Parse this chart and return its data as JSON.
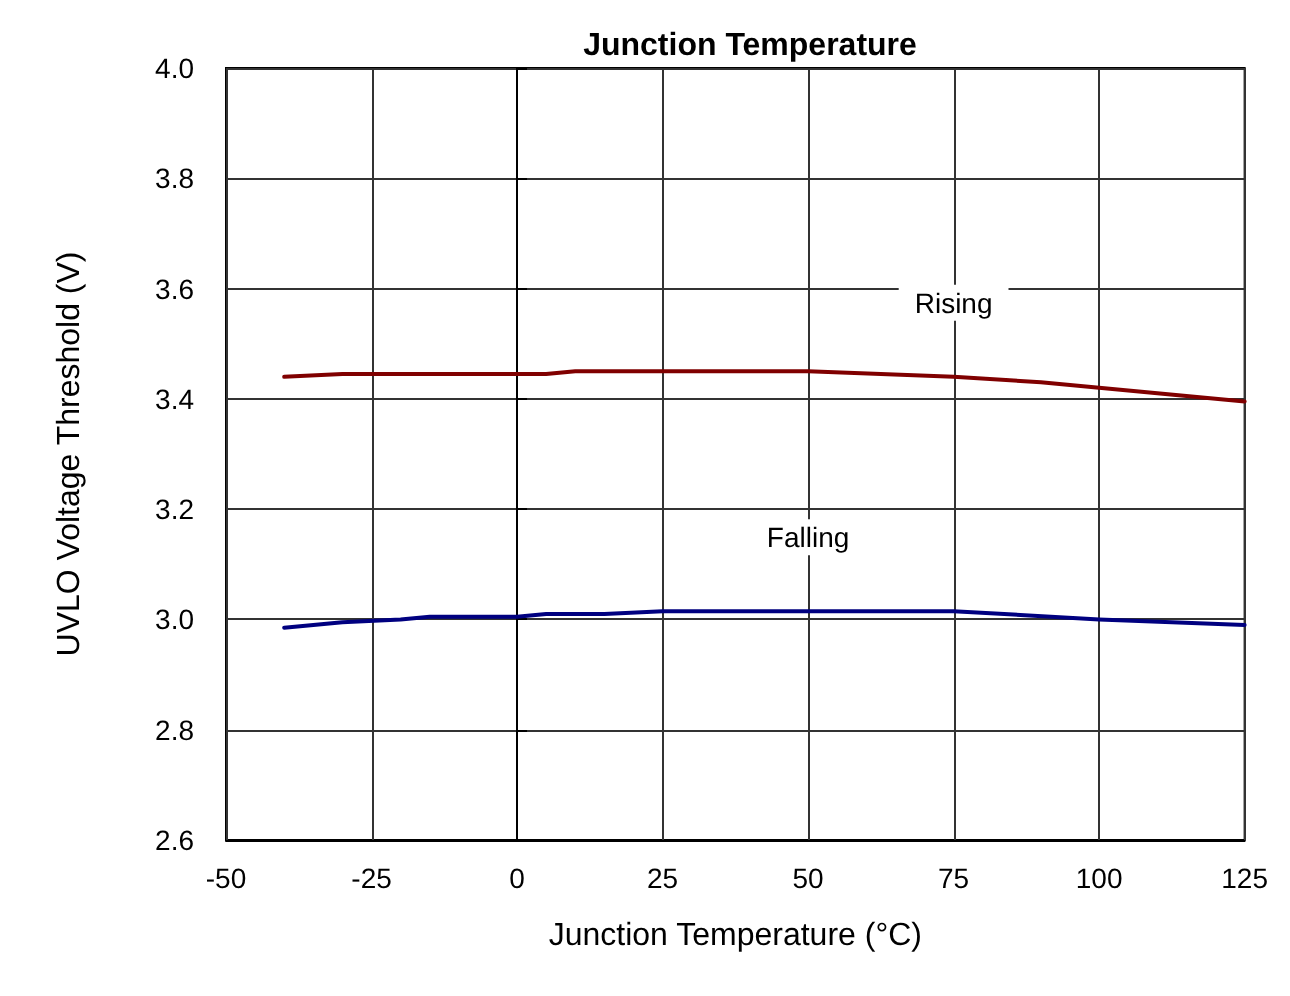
{
  "chart_data": {
    "type": "line",
    "title": "Junction Temperature",
    "xlabel": "Junction Temperature (°C)",
    "ylabel": "UVLO Voltage Threshold (V)",
    "xlim": [
      -50,
      125
    ],
    "xticks": [
      -50,
      -25,
      0,
      25,
      50,
      75,
      100,
      125
    ],
    "ylim": [
      2.6,
      4.0
    ],
    "yticks": [
      {
        "value": 2.6,
        "label": "2.6"
      },
      {
        "value": 2.8,
        "label": "2.8"
      },
      {
        "value": 3.0,
        "label": "3.0"
      },
      {
        "value": 3.2,
        "label": "3.2"
      },
      {
        "value": 3.4,
        "label": "3.4"
      },
      {
        "value": 3.6,
        "label": "3.6"
      },
      {
        "value": 3.8,
        "label": "3.8"
      },
      {
        "value": 4.0,
        "label": "4.0"
      }
    ],
    "grid": true,
    "legend": false,
    "marker": "none",
    "line_style": "solid",
    "series": [
      {
        "name": "Rising",
        "color": "#800000",
        "x": [
          -40,
          -30,
          -20,
          -10,
          0,
          5,
          10,
          25,
          50,
          75,
          90,
          100,
          125
        ],
        "values": [
          3.44,
          3.445,
          3.445,
          3.445,
          3.445,
          3.445,
          3.45,
          3.45,
          3.45,
          3.44,
          3.43,
          3.42,
          3.395
        ]
      },
      {
        "name": "Falling",
        "color": "#000080",
        "x": [
          -40,
          -30,
          -20,
          -15,
          0,
          5,
          15,
          25,
          50,
          75,
          100,
          125
        ],
        "values": [
          2.985,
          2.995,
          3.0,
          3.005,
          3.005,
          3.01,
          3.01,
          3.015,
          3.015,
          3.015,
          3.0,
          2.99
        ]
      }
    ]
  }
}
